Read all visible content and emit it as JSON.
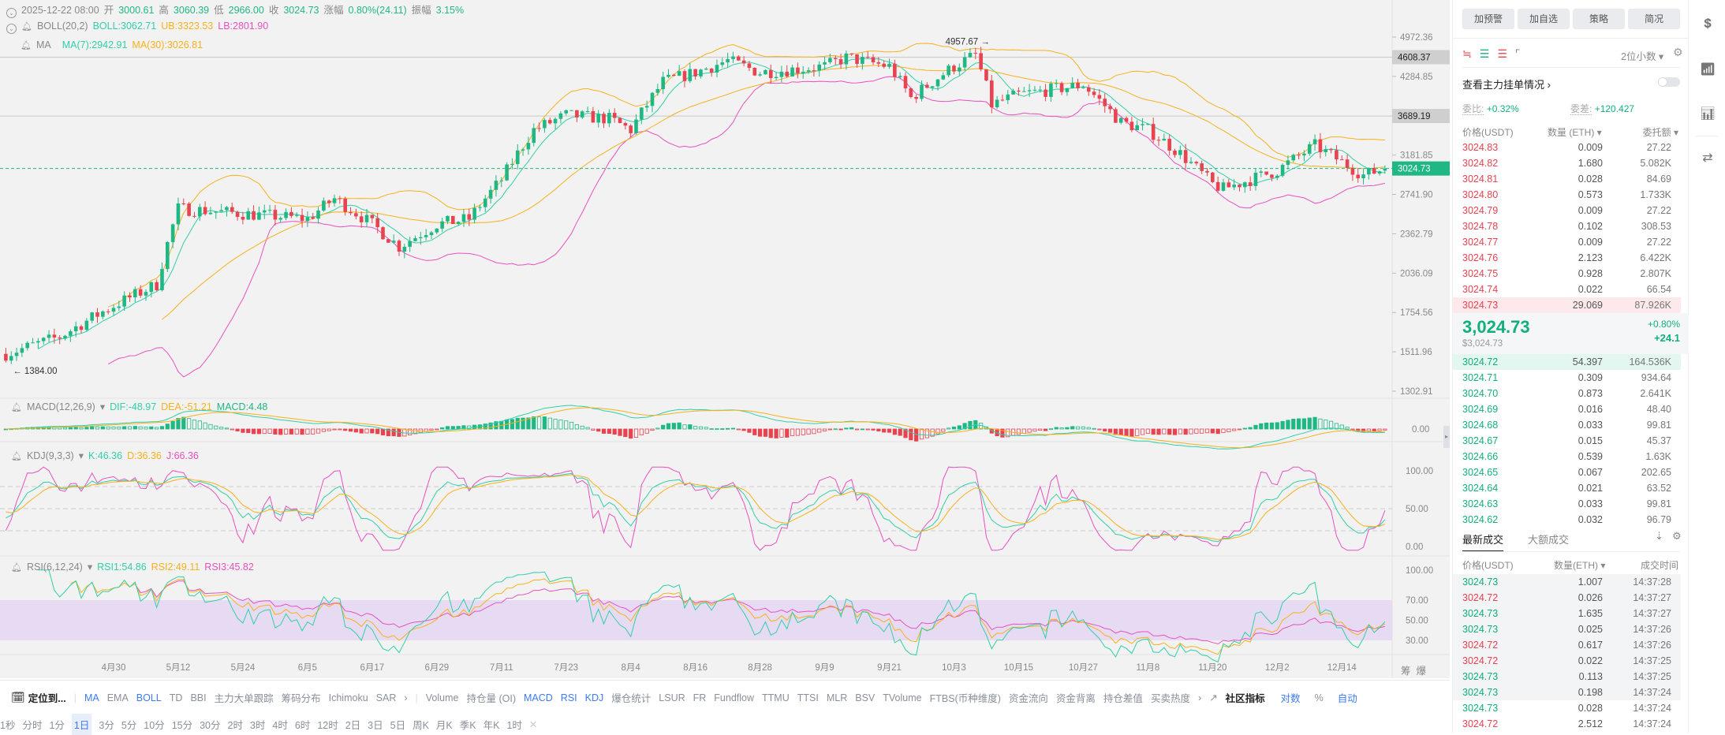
{
  "header": {
    "date": "2025-12-22 08:00",
    "open_label": "开",
    "open": "3000.61",
    "high_label": "高",
    "high": "3060.39",
    "low_label": "低",
    "low": "2966.00",
    "close_label": "收",
    "close": "3024.73",
    "change_label": "涨幅",
    "change": "0.80%(24.11)",
    "amplitude_label": "振幅",
    "amplitude": "3.15%",
    "boll": {
      "name": "BOLL(20,2)",
      "boll": "BOLL:3062.71",
      "ub": "UB:3323.53",
      "lb": "LB:2801.90"
    },
    "ma": {
      "name": "MA",
      "ma7": "MA(7):2942.91",
      "ma30": "MA(30):3026.81"
    }
  },
  "indicators": {
    "macd": {
      "name": "MACD(12,26,9)",
      "dif": "DIF:-48.97",
      "dea": "DEA:-51.21",
      "macd": "MACD:4.48"
    },
    "kdj": {
      "name": "KDJ(9,3,3)",
      "k": "K:46.36",
      "d": "D:36.36",
      "j": "J:66.36"
    },
    "rsi": {
      "name": "RSI(6,12,24)",
      "rsi1": "RSI1:54.86",
      "rsi2": "RSI2:49.11",
      "rsi3": "RSI3:45.82"
    }
  },
  "chart_data": {
    "type": "candlestick",
    "price_scale": "log",
    "colors": {
      "up": "#1fb885",
      "down": "#e8434f",
      "ma7": "#30d0a8",
      "ma30": "#f7b11c",
      "lb": "#e850c0",
      "ub": "#f7b11c"
    },
    "price_ticks": [
      "4972.36",
      "4284.85",
      "3181.85",
      "2741.90",
      "2362.79",
      "2036.09",
      "1754.56",
      "1511.96",
      "1302.91"
    ],
    "price_range": [
      1302.91,
      4972.36
    ],
    "marked_levels": [
      "4608.37",
      "3689.19"
    ],
    "current_price": "3024.73",
    "max_label": "4957.67",
    "min_label": "1384.00",
    "macd_ticks": [
      "0.00"
    ],
    "kdj_ticks": [
      "100.00",
      "50.00",
      "0.00"
    ],
    "rsi_ticks": [
      "100.00",
      "70.00",
      "50.00",
      "30.00"
    ],
    "x_ticks": [
      "4月30",
      "5月12",
      "5月24",
      "6月5",
      "6月17",
      "6月29",
      "7月11",
      "7月23",
      "8月4",
      "8月16",
      "8月28",
      "9月9",
      "9月21",
      "10月3",
      "10月15",
      "10月27",
      "11月8",
      "11月20",
      "12月2",
      "12月14"
    ],
    "x_tick_first_day": 20,
    "x_tick_interval_days": 12,
    "close_keyframes": [
      [
        0,
        1500
      ],
      [
        10,
        1600
      ],
      [
        20,
        1800
      ],
      [
        28,
        1950
      ],
      [
        32,
        2600
      ],
      [
        44,
        2550
      ],
      [
        56,
        2500
      ],
      [
        61,
        2700
      ],
      [
        68,
        2450
      ],
      [
        73,
        2250
      ],
      [
        80,
        2450
      ],
      [
        86,
        2500
      ],
      [
        92,
        2900
      ],
      [
        98,
        3500
      ],
      [
        104,
        3700
      ],
      [
        112,
        3650
      ],
      [
        116,
        3500
      ],
      [
        122,
        4200
      ],
      [
        128,
        4350
      ],
      [
        134,
        4550
      ],
      [
        140,
        4350
      ],
      [
        152,
        4450
      ],
      [
        156,
        4600
      ],
      [
        164,
        4450
      ],
      [
        168,
        3950
      ],
      [
        176,
        4450
      ],
      [
        180,
        4650
      ],
      [
        183,
        3850
      ],
      [
        188,
        4000
      ],
      [
        200,
        4150
      ],
      [
        207,
        3600
      ],
      [
        212,
        3500
      ],
      [
        218,
        3200
      ],
      [
        224,
        2850
      ],
      [
        226,
        2800
      ],
      [
        236,
        3000
      ],
      [
        243,
        3300
      ],
      [
        248,
        3100
      ],
      [
        252,
        2950
      ],
      [
        256,
        3024.73
      ]
    ],
    "last_candle": {
      "open": 3000.61,
      "high": 3060.39,
      "low": 2966.0,
      "close": 3024.73
    }
  },
  "axis_extra": [
    "筹",
    "爆"
  ],
  "toolbar": {
    "locate": "定位到...",
    "main_indicators": [
      "MA",
      "EMA",
      "BOLL",
      "TD",
      "BBI",
      "主力大单跟踪",
      "筹码分布",
      "Ichimoku",
      "SAR"
    ],
    "main_active": [
      "MA",
      "BOLL"
    ],
    "sub_indicators": [
      "Volume",
      "持仓量 (OI)",
      "MACD",
      "RSI",
      "KDJ",
      "爆仓统计",
      "LSUR",
      "FR",
      "Fundflow",
      "TTMU",
      "TTSI",
      "MLR",
      "BSV",
      "TVolume",
      "FTBS(币种维度)",
      "资金流向",
      "资金背离",
      "持仓差值",
      "买卖热度"
    ],
    "sub_active": [
      "MACD",
      "RSI",
      "KDJ"
    ],
    "community": "社区指标",
    "log": "对数",
    "percent": "%",
    "auto": "自动",
    "intervals": [
      "1秒",
      "分时",
      "1分",
      "1日",
      "3分",
      "5分",
      "10分",
      "15分",
      "30分",
      "2时",
      "3时",
      "4时",
      "6时",
      "12时",
      "2日",
      "3日",
      "5日",
      "周K",
      "月K",
      "季K",
      "年K",
      "1时"
    ],
    "selected_interval": "1日"
  },
  "panel": {
    "buttons": [
      "加预警",
      "加自选",
      "策略",
      "简况"
    ],
    "precision": "2位小数",
    "main_orders": "查看主力挂单情况",
    "ratio_label": "委比:",
    "ratio": "+0.32%",
    "diff_label": "委差:",
    "diff": "+120.427",
    "cols": [
      "价格(USDT)",
      "数量 (ETH)",
      "委托额"
    ],
    "asks": [
      [
        "3024.83",
        "0.009",
        "27.22"
      ],
      [
        "3024.82",
        "1.680",
        "5.082K"
      ],
      [
        "3024.81",
        "0.028",
        "84.69"
      ],
      [
        "3024.80",
        "0.573",
        "1.733K"
      ],
      [
        "3024.79",
        "0.009",
        "27.22"
      ],
      [
        "3024.78",
        "0.102",
        "308.53"
      ],
      [
        "3024.77",
        "0.009",
        "27.22"
      ],
      [
        "3024.76",
        "2.123",
        "6.422K"
      ],
      [
        "3024.75",
        "0.928",
        "2.807K"
      ],
      [
        "3024.74",
        "0.022",
        "66.54"
      ],
      [
        "3024.73",
        "29.069",
        "87.926K"
      ]
    ],
    "last_price": "3,024.73",
    "last_usd": "$3,024.73",
    "last_pct": "+0.80%",
    "last_change": "+24.1",
    "bids": [
      [
        "3024.72",
        "54.397",
        "164.536K"
      ],
      [
        "3024.71",
        "0.309",
        "934.64"
      ],
      [
        "3024.70",
        "0.873",
        "2.641K"
      ],
      [
        "3024.69",
        "0.016",
        "48.40"
      ],
      [
        "3024.68",
        "0.033",
        "99.81"
      ],
      [
        "3024.67",
        "0.015",
        "45.37"
      ],
      [
        "3024.66",
        "0.539",
        "1.63K"
      ],
      [
        "3024.65",
        "0.067",
        "202.65"
      ],
      [
        "3024.64",
        "0.021",
        "63.52"
      ],
      [
        "3024.63",
        "0.033",
        "99.81"
      ],
      [
        "3024.62",
        "0.032",
        "96.79"
      ]
    ],
    "trade_tabs": [
      "最新成交",
      "大额成交"
    ],
    "trade_cols": [
      "价格(USDT)",
      "数量(ETH)",
      "成交时间"
    ],
    "trades": [
      [
        "3024.73",
        "1.007",
        "14:37:28",
        "buy"
      ],
      [
        "3024.72",
        "0.026",
        "14:37:27",
        "sell"
      ],
      [
        "3024.73",
        "1.635",
        "14:37:27",
        "buy"
      ],
      [
        "3024.73",
        "0.025",
        "14:37:26",
        "buy"
      ],
      [
        "3024.72",
        "0.617",
        "14:37:26",
        "sell"
      ],
      [
        "3024.72",
        "0.022",
        "14:37:25",
        "sell"
      ],
      [
        "3024.73",
        "0.113",
        "14:37:25",
        "buy"
      ],
      [
        "3024.73",
        "0.198",
        "14:37:24",
        "buy"
      ],
      [
        "3024.73",
        "0.028",
        "14:37:24",
        "buy"
      ],
      [
        "3024.72",
        "2.512",
        "14:37:24",
        "sell"
      ]
    ]
  }
}
